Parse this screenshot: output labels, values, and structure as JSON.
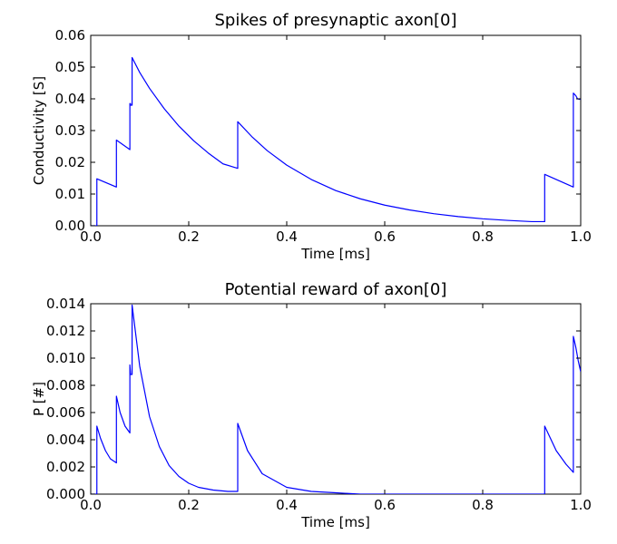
{
  "colors": {
    "series": "#0000ff",
    "axes": "#000000",
    "background": "#ffffff"
  },
  "chart_data": [
    {
      "type": "line",
      "title": "Spikes of presynaptic axon[0]",
      "xlabel": "Time [ms]",
      "ylabel": "Conductivity [S]",
      "xlim": [
        0,
        1.0
      ],
      "ylim": [
        0,
        0.06
      ],
      "xticks": [
        "0.0",
        "0.2",
        "0.4",
        "0.6",
        "0.8",
        "1.0"
      ],
      "yticks": [
        "0.00",
        "0.01",
        "0.02",
        "0.03",
        "0.04",
        "0.05",
        "0.06"
      ],
      "grid": false,
      "legend": "none",
      "series": [
        {
          "x": [
            0.0,
            0.0125,
            0.0125,
            0.0524,
            0.0524,
            0.0799,
            0.0799,
            0.0813,
            0.0813,
            0.0844,
            0.0844,
            0.1,
            0.12,
            0.15,
            0.18,
            0.21,
            0.24,
            0.27,
            0.3,
            0.3,
            0.33,
            0.36,
            0.4,
            0.45,
            0.5,
            0.55,
            0.6,
            0.65,
            0.7,
            0.75,
            0.8,
            0.85,
            0.9,
            0.9265,
            0.9265,
            0.985,
            0.985,
            0.99,
            0.9935,
            1.0
          ],
          "y": [
            0.0,
            0.0,
            0.0148,
            0.0122,
            0.027,
            0.024,
            0.0385,
            0.0385,
            0.038,
            0.038,
            0.053,
            0.0483,
            0.0433,
            0.0369,
            0.0314,
            0.0268,
            0.0229,
            0.0195,
            0.0181,
            0.0328,
            0.0279,
            0.0237,
            0.0191,
            0.0146,
            0.0111,
            0.0085,
            0.0065,
            0.005,
            0.0038,
            0.0029,
            0.0022,
            0.0017,
            0.0013,
            0.0013,
            0.0162,
            0.0122,
            0.0418,
            0.041,
            0.04,
            0.0398
          ]
        }
      ]
    },
    {
      "type": "line",
      "title": "Potential reward of axon[0]",
      "xlabel": "Time [ms]",
      "ylabel": "P [#]",
      "xlim": [
        0,
        1.0
      ],
      "ylim": [
        0,
        0.014
      ],
      "xticks": [
        "0.0",
        "0.2",
        "0.4",
        "0.6",
        "0.8",
        "1.0"
      ],
      "yticks": [
        "0.000",
        "0.002",
        "0.004",
        "0.006",
        "0.008",
        "0.010",
        "0.012",
        "0.014"
      ],
      "grid": false,
      "legend": "none",
      "series": [
        {
          "x": [
            0.0,
            0.0125,
            0.0125,
            0.02,
            0.03,
            0.04,
            0.0524,
            0.0524,
            0.06,
            0.07,
            0.0799,
            0.0799,
            0.081,
            0.0813,
            0.0844,
            0.0844,
            0.1,
            0.12,
            0.14,
            0.16,
            0.18,
            0.2,
            0.22,
            0.25,
            0.28,
            0.3,
            0.3,
            0.32,
            0.35,
            0.4,
            0.45,
            0.5,
            0.55,
            0.6,
            0.7,
            0.8,
            0.9,
            0.9265,
            0.9265,
            0.95,
            0.97,
            0.985,
            0.985,
            0.99,
            0.995,
            1.0
          ],
          "y": [
            0.0,
            0.0,
            0.005,
            0.0041,
            0.0032,
            0.0026,
            0.0023,
            0.0072,
            0.006,
            0.005,
            0.0045,
            0.0095,
            0.009,
            0.0088,
            0.0088,
            0.0139,
            0.0094,
            0.0057,
            0.0035,
            0.0021,
            0.0013,
            0.0008,
            0.0005,
            0.0003,
            0.0002,
            0.0002,
            0.0052,
            0.0032,
            0.0015,
            0.0005,
            0.0002,
            0.0001,
            0.0,
            0.0,
            0.0,
            0.0,
            0.0,
            0.0,
            0.005,
            0.0032,
            0.0022,
            0.0016,
            0.0116,
            0.0108,
            0.0098,
            0.009
          ]
        }
      ]
    }
  ]
}
